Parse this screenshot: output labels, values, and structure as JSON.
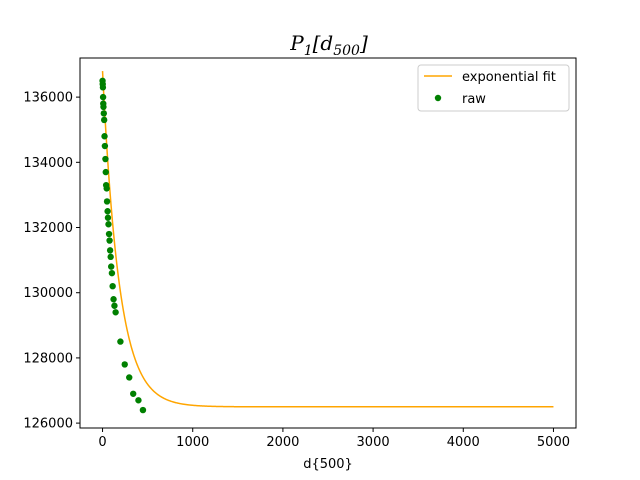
{
  "chart_data": {
    "type": "scatter",
    "title": {
      "main": "P",
      "sub": "1",
      "open": "[d",
      "inner_sub": "500",
      "close": "]"
    },
    "xlabel": "d{500}",
    "ylabel": "",
    "xlim": [
      -250,
      5250
    ],
    "ylim": [
      125850,
      137200
    ],
    "xticks": [
      0,
      1000,
      2000,
      3000,
      4000,
      5000
    ],
    "xtick_labels": [
      "0",
      "1000",
      "2000",
      "3000",
      "4000",
      "5000"
    ],
    "yticks": [
      126000,
      128000,
      130000,
      132000,
      134000,
      136000
    ],
    "ytick_labels": [
      "126000",
      "128000",
      "130000",
      "132000",
      "134000",
      "136000"
    ],
    "grid": false,
    "legend": {
      "placement": "top-right"
    },
    "series": [
      {
        "name": "exponential fit",
        "kind": "line",
        "color": "#ffa500",
        "model": {
          "a": 10300,
          "b": 185,
          "c": 126500
        },
        "x_range": [
          0,
          5000
        ]
      },
      {
        "name": "raw",
        "kind": "scatter",
        "color": "#008000",
        "x": [
          0,
          2,
          4,
          6,
          8,
          10,
          14,
          18,
          22,
          26,
          32,
          36,
          40,
          46,
          50,
          56,
          60,
          66,
          72,
          78,
          84,
          90,
          96,
          104,
          112,
          122,
          132,
          145,
          198,
          246,
          296,
          340,
          398,
          448
        ],
        "y": [
          136500,
          136400,
          136300,
          136000,
          135800,
          135700,
          135500,
          135300,
          134800,
          134500,
          134100,
          133700,
          133300,
          133200,
          132800,
          132500,
          132300,
          132100,
          131800,
          131600,
          131300,
          131100,
          130800,
          130600,
          130200,
          129800,
          129600,
          129400,
          128500,
          127800,
          127400,
          126900,
          126700,
          126400
        ]
      }
    ]
  }
}
